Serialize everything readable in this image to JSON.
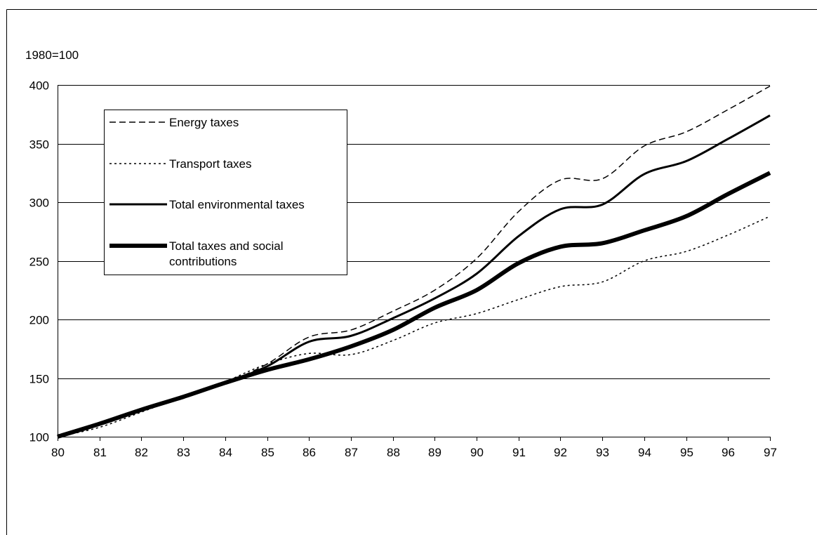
{
  "chart_data": {
    "type": "line",
    "title": "",
    "ylabel": "1980=100",
    "xlabel": "",
    "ylim": [
      100,
      400
    ],
    "yticks": [
      100,
      150,
      200,
      250,
      300,
      350,
      400
    ],
    "grid": true,
    "legend_position": "top-left",
    "x": [
      "80",
      "81",
      "82",
      "83",
      "84",
      "85",
      "86",
      "87",
      "88",
      "89",
      "90",
      "91",
      "92",
      "93",
      "94",
      "95",
      "96",
      "97"
    ],
    "series": [
      {
        "name": "Energy taxes",
        "style": "dashed",
        "values": [
          100,
          110,
          123,
          134,
          146,
          162,
          185,
          191,
          207,
          225,
          252,
          292,
          319,
          320,
          348,
          360,
          379,
          399
        ]
      },
      {
        "name": "Transport taxes",
        "style": "dotted",
        "values": [
          100,
          108,
          121,
          134,
          147,
          162,
          171,
          170,
          182,
          197,
          205,
          217,
          228,
          232,
          250,
          258,
          272,
          288
        ]
      },
      {
        "name": "Total environmental taxes",
        "style": "solid",
        "values": [
          100,
          111,
          123,
          134,
          146,
          160,
          181,
          186,
          201,
          218,
          239,
          271,
          294,
          298,
          324,
          335,
          354,
          374
        ]
      },
      {
        "name": "Total taxes and social contributions",
        "style": "thick",
        "values": [
          100,
          111,
          123,
          134,
          146,
          157,
          166,
          177,
          191,
          210,
          225,
          248,
          262,
          265,
          276,
          288,
          307,
          325
        ]
      }
    ],
    "legend_lines": [
      [
        "Energy taxes"
      ],
      [
        "Transport taxes"
      ],
      [
        "Total environmental taxes"
      ],
      [
        "Total taxes and social",
        "contributions"
      ]
    ],
    "colors": {
      "lines": "#000000",
      "grid": "#000000",
      "background": "#ffffff"
    }
  }
}
